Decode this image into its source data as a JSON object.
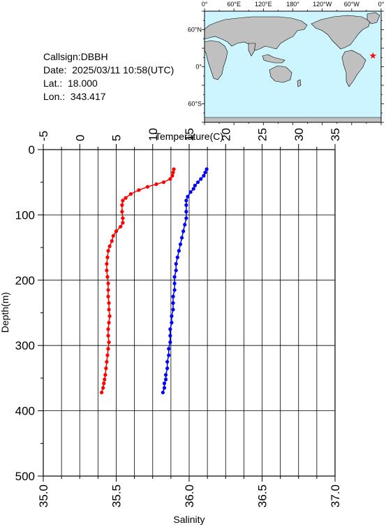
{
  "info": {
    "callsign": "Callsign:DBBH",
    "date": "Date:  2025/03/11 10:58(UTC)",
    "lat": "Lat.:  18.000",
    "lon": "Lon.:  343.417"
  },
  "map": {
    "lon_labels": [
      "0°",
      "60°E",
      "120°E",
      "180°",
      "120°W",
      "60°W",
      "0°"
    ],
    "lat_labels": [
      "60°N",
      "0°",
      "60°S"
    ],
    "ocean_color": "#cdf5ff",
    "land_color": "#c0c0c0",
    "marker": {
      "lat": 18.0,
      "lon": 343.417,
      "color": "#ff0000",
      "icon": "star-icon"
    }
  },
  "chart_data": {
    "type": "line",
    "ylabel": "Depth(m)",
    "ylim": [
      500,
      0
    ],
    "yticks": [
      "0",
      "100",
      "200",
      "300",
      "400",
      "500"
    ],
    "temperature_axis": {
      "label": "Temperature(C)",
      "range": [
        -5,
        35
      ],
      "ticks": [
        "-5",
        "0",
        "5",
        "10",
        "15",
        "20",
        "25",
        "30",
        "35"
      ]
    },
    "salinity_axis": {
      "label": "Salinity",
      "range": [
        35.0,
        37.0
      ],
      "ticks": [
        "35.0",
        "35.5",
        "36.0",
        "36.5",
        "37.0"
      ]
    },
    "grid": true,
    "series": [
      {
        "axis": "temperature",
        "color": "#ff0000",
        "points": [
          [
            12.9,
            30
          ],
          [
            12.8,
            35
          ],
          [
            12.7,
            40
          ],
          [
            12.4,
            45
          ],
          [
            11.5,
            50
          ],
          [
            10.5,
            53
          ],
          [
            9.3,
            57
          ],
          [
            8.1,
            62
          ],
          [
            7.0,
            68
          ],
          [
            6.3,
            74
          ],
          [
            5.9,
            78
          ],
          [
            5.8,
            85
          ],
          [
            5.8,
            95
          ],
          [
            5.9,
            105
          ],
          [
            5.9,
            112
          ],
          [
            5.6,
            118
          ],
          [
            5.0,
            125
          ],
          [
            4.6,
            132
          ],
          [
            4.4,
            140
          ],
          [
            4.1,
            148
          ],
          [
            3.9,
            155
          ],
          [
            3.8,
            165
          ],
          [
            3.7,
            175
          ],
          [
            3.7,
            185
          ],
          [
            3.8,
            195
          ],
          [
            3.9,
            205
          ],
          [
            3.9,
            215
          ],
          [
            3.9,
            225
          ],
          [
            4.0,
            235
          ],
          [
            4.0,
            245
          ],
          [
            4.1,
            255
          ],
          [
            4.0,
            265
          ],
          [
            3.9,
            275
          ],
          [
            3.9,
            285
          ],
          [
            4.0,
            295
          ],
          [
            3.9,
            305
          ],
          [
            3.8,
            315
          ],
          [
            3.7,
            325
          ],
          [
            3.6,
            335
          ],
          [
            3.5,
            345
          ],
          [
            3.4,
            352
          ],
          [
            3.3,
            358
          ],
          [
            3.2,
            365
          ],
          [
            3.0,
            372
          ]
        ]
      },
      {
        "axis": "salinity",
        "color": "#0000ff",
        "points": [
          [
            36.12,
            30
          ],
          [
            36.11,
            35
          ],
          [
            36.1,
            40
          ],
          [
            36.08,
            45
          ],
          [
            36.06,
            50
          ],
          [
            36.04,
            55
          ],
          [
            36.03,
            60
          ],
          [
            36.01,
            65
          ],
          [
            35.99,
            72
          ],
          [
            35.98,
            78
          ],
          [
            35.98,
            85
          ],
          [
            35.98,
            95
          ],
          [
            35.98,
            105
          ],
          [
            35.97,
            115
          ],
          [
            35.96,
            125
          ],
          [
            35.95,
            135
          ],
          [
            35.94,
            145
          ],
          [
            35.93,
            155
          ],
          [
            35.92,
            165
          ],
          [
            35.91,
            175
          ],
          [
            35.91,
            185
          ],
          [
            35.9,
            195
          ],
          [
            35.9,
            205
          ],
          [
            35.9,
            215
          ],
          [
            35.89,
            225
          ],
          [
            35.89,
            235
          ],
          [
            35.89,
            245
          ],
          [
            35.88,
            255
          ],
          [
            35.88,
            265
          ],
          [
            35.87,
            275
          ],
          [
            35.87,
            285
          ],
          [
            35.87,
            295
          ],
          [
            35.86,
            305
          ],
          [
            35.86,
            315
          ],
          [
            35.85,
            325
          ],
          [
            35.85,
            335
          ],
          [
            35.84,
            345
          ],
          [
            35.84,
            352
          ],
          [
            35.83,
            358
          ],
          [
            35.83,
            365
          ],
          [
            35.82,
            372
          ]
        ]
      }
    ]
  }
}
